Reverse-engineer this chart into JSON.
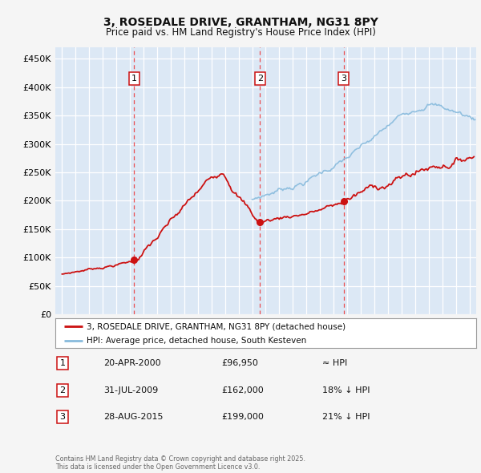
{
  "title_line1": "3, ROSEDALE DRIVE, GRANTHAM, NG31 8PY",
  "title_line2": "Price paid vs. HM Land Registry's House Price Index (HPI)",
  "background_color": "#f5f5f5",
  "plot_bg_color": "#dce8f5",
  "grid_color": "#ffffff",
  "sale_color": "#cc1111",
  "hpi_color": "#88bbdd",
  "vline_color": "#ee3333",
  "sale1_date": 2000.3,
  "sale1_price": 96950,
  "sale2_date": 2009.58,
  "sale2_price": 162000,
  "sale3_date": 2015.75,
  "sale3_price": 199000,
  "legend_sale": "3, ROSEDALE DRIVE, GRANTHAM, NG31 8PY (detached house)",
  "legend_hpi": "HPI: Average price, detached house, South Kesteven",
  "table_rows": [
    {
      "num": "1",
      "date": "20-APR-2000",
      "price": "£96,950",
      "vs": "≈ HPI"
    },
    {
      "num": "2",
      "date": "31-JUL-2009",
      "price": "£162,000",
      "vs": "18% ↓ HPI"
    },
    {
      "num": "3",
      "date": "28-AUG-2015",
      "price": "£199,000",
      "vs": "21% ↓ HPI"
    }
  ],
  "footnote": "Contains HM Land Registry data © Crown copyright and database right 2025.\nThis data is licensed under the Open Government Licence v3.0.",
  "ylim": [
    0,
    470000
  ],
  "yticks": [
    0,
    50000,
    100000,
    150000,
    200000,
    250000,
    300000,
    350000,
    400000,
    450000
  ],
  "xlim": [
    1994.5,
    2025.5
  ]
}
